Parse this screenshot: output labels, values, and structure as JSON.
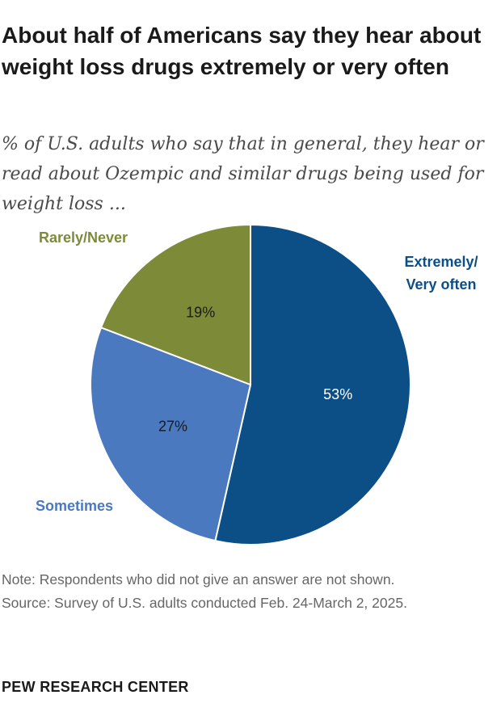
{
  "chart_data": {
    "type": "pie",
    "title": "About half of Americans say they hear about weight loss drugs extremely or very often",
    "subtitle": "% of U.S. adults who say that in general, they hear or read about Ozempic and similar drugs being used for weight loss ...",
    "slices": [
      {
        "label": "Extremely/ Very often",
        "value": 53,
        "value_label": "53%",
        "color": "#0b4f86",
        "value_text_color": "#ffffff",
        "label_color": "#0b4f86"
      },
      {
        "label": "Sometimes",
        "value": 27,
        "value_label": "27%",
        "color": "#4a79c0",
        "value_text_color": "#1a1a1a",
        "label_color": "#4a79c0"
      },
      {
        "label": "Rarely/Never",
        "value": 19,
        "value_label": "19%",
        "color": "#7d8b39",
        "value_text_color": "#1a1a1a",
        "label_color": "#7d8b39"
      }
    ],
    "start": "12 o'clock, clockwise"
  },
  "note": "Note: Respondents who did not give an answer are not shown.",
  "source": "Source: Survey of U.S. adults conducted Feb. 24-March 2, 2025.",
  "brand": "PEW RESEARCH CENTER"
}
